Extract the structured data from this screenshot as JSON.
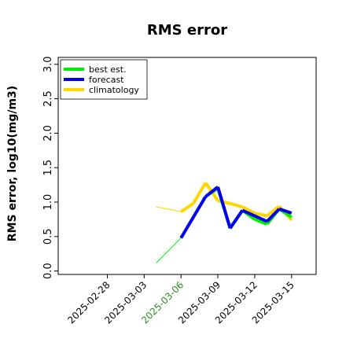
{
  "chart_data": {
    "type": "line",
    "title": "RMS error",
    "ylabel": "RMS error, log10(mg/m3)",
    "xlabel": "",
    "ylim": [
      -0.05,
      3.1
    ],
    "yticks": [
      "0.0",
      "0.5",
      "1.0",
      "1.5",
      "2.0",
      "2.5",
      "3.0"
    ],
    "xlim": [
      "2025-02-24",
      "2025-03-17"
    ],
    "xticks": [
      {
        "label": "2025-02-28",
        "color": "#000000"
      },
      {
        "label": "2025-03-03",
        "color": "#000000"
      },
      {
        "label": "2025-03-06",
        "color": "#2e8b22"
      },
      {
        "label": "2025-03-09",
        "color": "#000000"
      },
      {
        "label": "2025-03-12",
        "color": "#000000"
      },
      {
        "label": "2025-03-15",
        "color": "#000000"
      }
    ],
    "legend_position": "top-left",
    "legend": [
      "best est.",
      "forecast",
      "climatology"
    ],
    "series": [
      {
        "name": "best est.",
        "color": "#00ee00",
        "points": [
          {
            "x": "2025-03-04",
            "y": 0.12,
            "style": "thin"
          },
          {
            "x": "2025-03-06",
            "y": 0.48,
            "style": "thin"
          },
          {
            "x": "2025-03-08",
            "y": 1.08
          },
          {
            "x": "2025-03-09",
            "y": 1.2
          },
          {
            "x": "2025-03-10",
            "y": 0.62
          },
          {
            "x": "2025-03-11",
            "y": 0.88
          },
          {
            "x": "2025-03-12",
            "y": 0.75
          },
          {
            "x": "2025-03-13",
            "y": 0.68
          },
          {
            "x": "2025-03-14",
            "y": 0.9
          },
          {
            "x": "2025-03-15",
            "y": 0.78
          }
        ]
      },
      {
        "name": "forecast",
        "color": "#0000ee",
        "points": [
          {
            "x": "2025-03-06",
            "y": 0.48
          },
          {
            "x": "2025-03-08",
            "y": 1.08
          },
          {
            "x": "2025-03-09",
            "y": 1.22
          },
          {
            "x": "2025-03-10",
            "y": 0.62
          },
          {
            "x": "2025-03-11",
            "y": 0.88
          },
          {
            "x": "2025-03-12",
            "y": 0.8
          },
          {
            "x": "2025-03-13",
            "y": 0.72
          },
          {
            "x": "2025-03-14",
            "y": 0.9
          },
          {
            "x": "2025-03-15",
            "y": 0.84
          }
        ]
      },
      {
        "name": "climatology",
        "color": "#ffd700",
        "points": [
          {
            "x": "2025-03-04",
            "y": 0.93,
            "style": "thin"
          },
          {
            "x": "2025-03-06",
            "y": 0.86
          },
          {
            "x": "2025-03-07",
            "y": 0.98
          },
          {
            "x": "2025-03-08",
            "y": 1.28
          },
          {
            "x": "2025-03-09",
            "y": 1.02
          },
          {
            "x": "2025-03-10",
            "y": 0.98
          },
          {
            "x": "2025-03-11",
            "y": 0.93
          },
          {
            "x": "2025-03-12",
            "y": 0.84
          },
          {
            "x": "2025-03-13",
            "y": 0.8
          },
          {
            "x": "2025-03-14",
            "y": 0.94
          },
          {
            "x": "2025-03-15",
            "y": 0.74
          }
        ]
      }
    ]
  }
}
